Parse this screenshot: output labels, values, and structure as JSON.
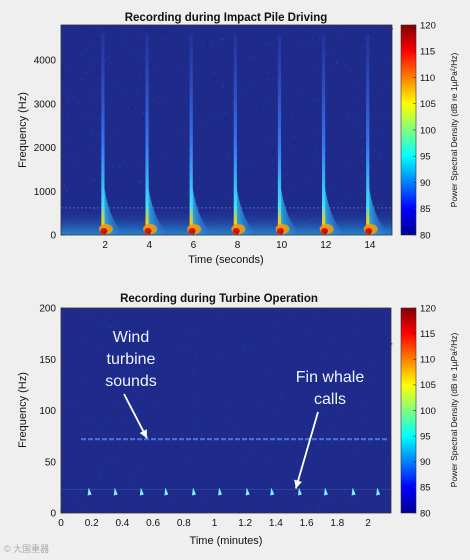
{
  "colors": {
    "background": "#1e2b8a",
    "page": "#efefef"
  },
  "watermark": {
    "text": "© 大国重器"
  },
  "chart_data": [
    {
      "type": "heatmap",
      "title": "Recording during Impact Pile Driving",
      "xlabel": "Time (seconds)",
      "ylabel": "Frequency (Hz)",
      "xlim": [
        0,
        15
      ],
      "ylim": [
        0,
        4800
      ],
      "xticks": [
        "2",
        "4",
        "6",
        "8",
        "10",
        "12",
        "14"
      ],
      "yticks": [
        "0",
        "1000",
        "2000",
        "3000",
        "4000"
      ],
      "colorbar": {
        "label": "Power Spectral Density (dB re 1µPa²/Hz)",
        "range": [
          80,
          120
        ],
        "ticks": [
          "80",
          "85",
          "90",
          "95",
          "100",
          "105",
          "110",
          "115",
          "120"
        ]
      },
      "pulse_times_s": [
        1.9,
        3.9,
        5.9,
        7.9,
        9.9,
        11.9,
        13.9
      ],
      "pulse_max_freq_hz": 4600
    },
    {
      "type": "heatmap",
      "title": "Recording during Turbine Operation",
      "xlabel": "Time (minutes)",
      "ylabel": "Frequency (Hz)",
      "xlim": [
        0,
        2.15
      ],
      "ylim": [
        0,
        200
      ],
      "xticks": [
        "0",
        "0.2",
        "0.4",
        "0.6",
        "0.8",
        "1",
        "1.2",
        "1.4",
        "1.6",
        "1.8",
        "2"
      ],
      "yticks": [
        "0",
        "50",
        "100",
        "150",
        "200"
      ],
      "colorbar": {
        "label": "Power Spectral Density (dB re 1µPa²/Hz)",
        "range": [
          80,
          120
        ],
        "ticks": [
          "80",
          "85",
          "90",
          "95",
          "100",
          "105",
          "110",
          "115",
          "120"
        ]
      },
      "turbine_line_freq_hz": 72,
      "fin_whale_call_times_min": [
        0.18,
        0.35,
        0.52,
        0.68,
        0.86,
        1.03,
        1.21,
        1.37,
        1.55,
        1.72,
        1.9,
        2.06
      ],
      "fin_whale_call_freq_hz": 20,
      "annotations": [
        {
          "lines": [
            "Wind",
            "turbine",
            "sounds"
          ],
          "target_time_min": 0.56,
          "target_freq_hz": 72
        },
        {
          "lines": [
            "Fin whale",
            "calls"
          ],
          "target_time_min": 1.53,
          "target_freq_hz": 22
        }
      ]
    }
  ]
}
